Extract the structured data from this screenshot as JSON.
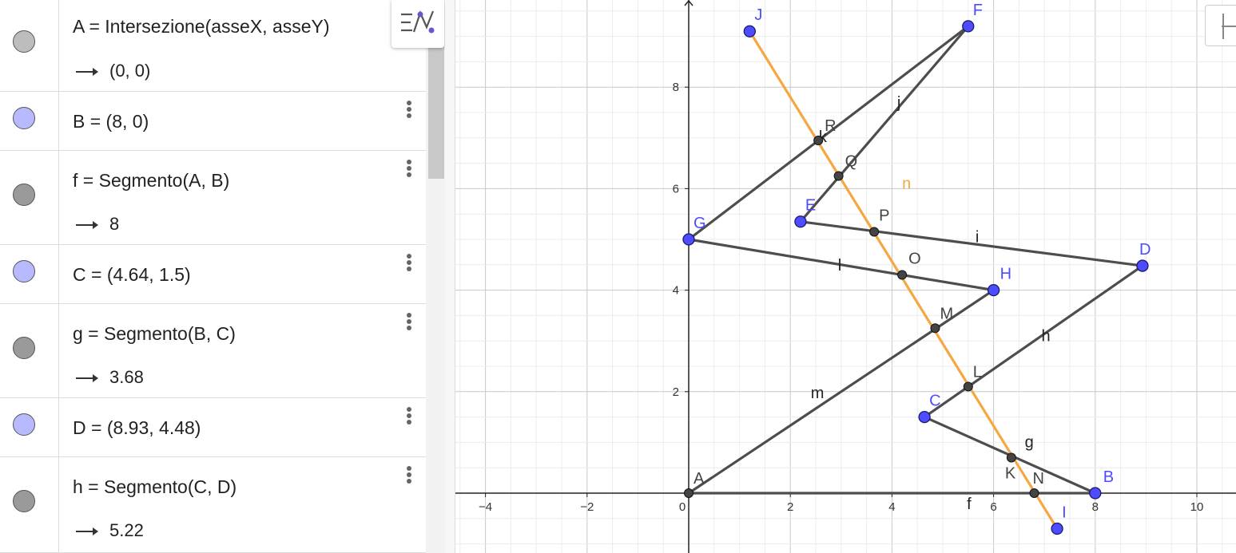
{
  "algebra": {
    "rows": [
      {
        "def": "A  =  Intersezione(asseX, asseY)",
        "out": "(0,  0)",
        "marble": "#bdbdbd",
        "has_menu": false
      },
      {
        "def": "B  =  (8,  0)",
        "out": null,
        "marble": "#b9b9ff",
        "has_menu": true
      },
      {
        "def": "f  =  Segmento(A, B)",
        "out": "8",
        "marble": "#9a9a9a",
        "has_menu": true
      },
      {
        "def": "C  =  (4.64,  1.5)",
        "out": null,
        "marble": "#b9b9ff",
        "has_menu": true
      },
      {
        "def": "g  =  Segmento(B, C)",
        "out": "3.68",
        "marble": "#9a9a9a",
        "has_menu": true
      },
      {
        "def": "D  =  (8.93,  4.48)",
        "out": null,
        "marble": "#b9b9ff",
        "has_menu": true
      },
      {
        "def": "h  =  Segmento(C, D)",
        "out": "5.22",
        "marble": "#9a9a9a",
        "has_menu": true
      }
    ]
  },
  "graphics": {
    "x_ticks": [
      "−4",
      "−2",
      "0",
      "2",
      "4",
      "6",
      "8",
      "10"
    ],
    "y_ticks": [
      "2",
      "4",
      "6",
      "8"
    ],
    "colors": {
      "free_point": "#4d4dff",
      "dependent_point": "#444444",
      "segment": "#4d4d4d",
      "line_n": "#f5a742",
      "grid_major": "#c8c8c8",
      "grid_minor": "#ececec"
    },
    "free_points": [
      {
        "name": "J",
        "x": 1.2,
        "y": 9.1
      },
      {
        "name": "F",
        "x": 5.5,
        "y": 9.2
      },
      {
        "name": "E",
        "x": 2.2,
        "y": 5.35
      },
      {
        "name": "G",
        "x": 0.0,
        "y": 5.0
      },
      {
        "name": "D",
        "x": 8.93,
        "y": 4.48
      },
      {
        "name": "H",
        "x": 6.0,
        "y": 4.0
      },
      {
        "name": "C",
        "x": 4.64,
        "y": 1.5
      },
      {
        "name": "B",
        "x": 8.0,
        "y": 0.0
      },
      {
        "name": "I",
        "x": 7.25,
        "y": -0.7
      }
    ],
    "dependent_points": [
      {
        "name": "A",
        "x": 0.0,
        "y": 0.0
      },
      {
        "name": "R",
        "x": 2.55,
        "y": 6.95
      },
      {
        "name": "Q",
        "x": 2.95,
        "y": 6.25
      },
      {
        "name": "P",
        "x": 3.65,
        "y": 5.15
      },
      {
        "name": "O",
        "x": 4.2,
        "y": 4.3
      },
      {
        "name": "M",
        "x": 4.85,
        "y": 3.25
      },
      {
        "name": "L",
        "x": 5.5,
        "y": 2.1
      },
      {
        "name": "K",
        "x": 6.35,
        "y": 0.7
      },
      {
        "name": "N",
        "x": 6.8,
        "y": 0.0
      }
    ],
    "segments": [
      {
        "name": "f",
        "from": "A",
        "to": "B"
      },
      {
        "name": "g",
        "from": "B",
        "to": "C"
      },
      {
        "name": "h",
        "from": "C",
        "to": "D"
      },
      {
        "name": "i",
        "from": "D",
        "to": "E"
      },
      {
        "name": "j",
        "from": "E",
        "to": "F"
      },
      {
        "name": "k",
        "from": "F",
        "to": "G"
      },
      {
        "name": "l",
        "from": "G",
        "to": "H"
      },
      {
        "name": "m",
        "from": "H",
        "to": "A"
      }
    ],
    "line_n": {
      "name": "n",
      "from": "J",
      "to": "I"
    }
  }
}
